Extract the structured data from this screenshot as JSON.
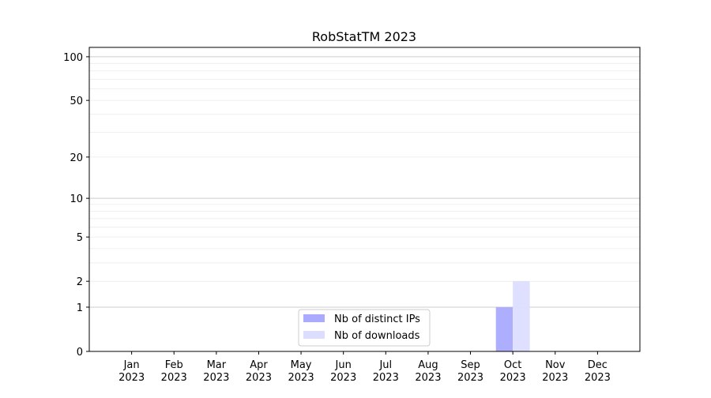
{
  "chart_data": {
    "type": "bar",
    "title": "RobStatTM 2023",
    "xlabel": "",
    "ylabel": "",
    "yscale": "symlog (log10(1+y))",
    "ylim": [
      0,
      116
    ],
    "yticks": [
      0,
      1,
      2,
      5,
      10,
      20,
      50,
      100
    ],
    "grid": true,
    "legend_placement": "lower center",
    "categories": [
      "Jan\n2023",
      "Feb\n2023",
      "Mar\n2023",
      "Apr\n2023",
      "May\n2023",
      "Jun\n2023",
      "Jul\n2023",
      "Aug\n2023",
      "Sep\n2023",
      "Oct\n2023",
      "Nov\n2023",
      "Dec\n2023"
    ],
    "series": [
      {
        "name": "Nb of distinct IPs",
        "color": "#aaaaff",
        "values": [
          0,
          0,
          0,
          0,
          0,
          0,
          0,
          0,
          0,
          1,
          0,
          0
        ]
      },
      {
        "name": "Nb of downloads",
        "color": "#ddddff",
        "values": [
          0,
          0,
          0,
          0,
          0,
          0,
          0,
          0,
          0,
          2,
          0,
          0
        ]
      }
    ]
  }
}
